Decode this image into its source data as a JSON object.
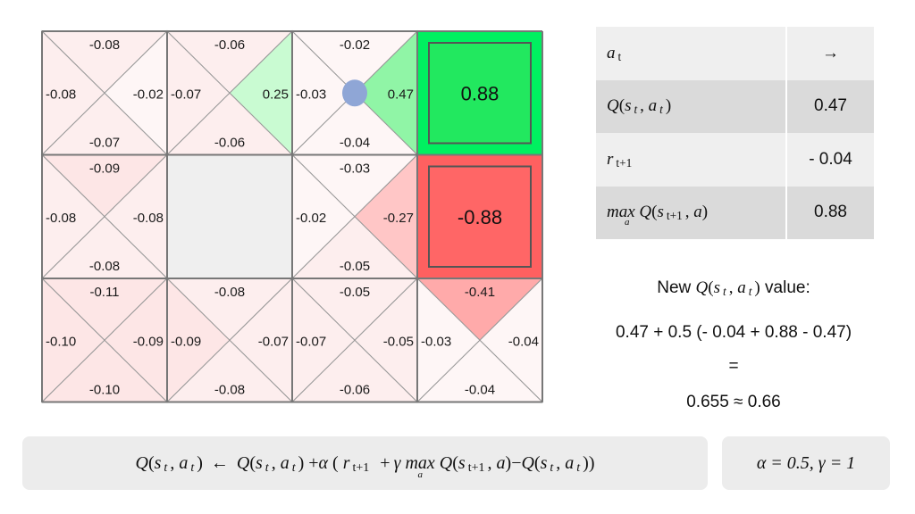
{
  "grid": {
    "rows": 3,
    "cols": 4,
    "cells": [
      {
        "r": 0,
        "c": 0,
        "type": "q",
        "up": "-0.08",
        "left": "-0.08",
        "right": "-0.02",
        "down": "-0.07"
      },
      {
        "r": 0,
        "c": 1,
        "type": "q",
        "up": "-0.06",
        "left": "-0.07",
        "right": "0.25",
        "down": "-0.06"
      },
      {
        "r": 0,
        "c": 2,
        "type": "q",
        "up": "-0.02",
        "left": "-0.03",
        "right": "0.47",
        "down": "-0.04"
      },
      {
        "r": 0,
        "c": 3,
        "type": "terminal",
        "value": "0.88",
        "fill": "#00f060",
        "inner": "#22e85f"
      },
      {
        "r": 1,
        "c": 0,
        "type": "q",
        "up": "-0.09",
        "left": "-0.08",
        "right": "-0.08",
        "down": "-0.08"
      },
      {
        "r": 1,
        "c": 1,
        "type": "wall"
      },
      {
        "r": 1,
        "c": 2,
        "type": "q",
        "up": "-0.03",
        "left": "-0.02",
        "right": "-0.27",
        "down": "-0.05"
      },
      {
        "r": 1,
        "c": 3,
        "type": "terminal",
        "value": "-0.88",
        "fill": "#ff6060",
        "inner": "#ff6666"
      },
      {
        "r": 2,
        "c": 0,
        "type": "q",
        "up": "-0.11",
        "left": "-0.10",
        "right": "-0.09",
        "down": "-0.10"
      },
      {
        "r": 2,
        "c": 1,
        "type": "q",
        "up": "-0.08",
        "left": "-0.09",
        "right": "-0.07",
        "down": "-0.08"
      },
      {
        "r": 2,
        "c": 2,
        "type": "q",
        "up": "-0.05",
        "left": "-0.07",
        "right": "-0.05",
        "down": "-0.06"
      },
      {
        "r": 2,
        "c": 3,
        "type": "q",
        "up": "-0.41",
        "left": "-0.03",
        "right": "-0.04",
        "down": "-0.04"
      }
    ],
    "agent": {
      "r": 0,
      "c": 2,
      "color": "#8fa6d6"
    }
  },
  "table": {
    "action": {
      "label_var": "a",
      "label_sub": "t",
      "value": "→"
    },
    "q": {
      "label_Q": "Q",
      "label_s": "s",
      "label_s_sub": "t",
      "label_a": "a",
      "label_a_sub": "t",
      "value": "0.47"
    },
    "r": {
      "label_var": "r",
      "label_sub": "t+1",
      "value": "- 0.04"
    },
    "maxq": {
      "label_max": "max",
      "label_max_sub": "a",
      "label_Q": "Q",
      "label_s": "s",
      "label_s_sub": "t+1",
      "label_a": "a",
      "value": "0.88"
    }
  },
  "update": {
    "line1_prefix": "New",
    "line1_Q": "Q",
    "line1_s": "s",
    "line1_s_sub": "t",
    "line1_a": "a",
    "line1_a_sub": "t",
    "line1_suffix": "value:",
    "line2": "0.47 + 0.5 (- 0.04 + 0.88 - 0.47)",
    "line3": "=",
    "line4": "0.655 ≈ 0.66"
  },
  "formula": {
    "Q": "Q",
    "s": "s",
    "t": "t",
    "a": "a",
    "arrow": "←",
    "plus": "+",
    "alpha": "α",
    "r": "r",
    "t1": "t+1",
    "gamma": "γ",
    "max": "max",
    "max_sub": "a",
    "minus": "−"
  },
  "params": {
    "text": "α = 0.5, γ = 1"
  }
}
